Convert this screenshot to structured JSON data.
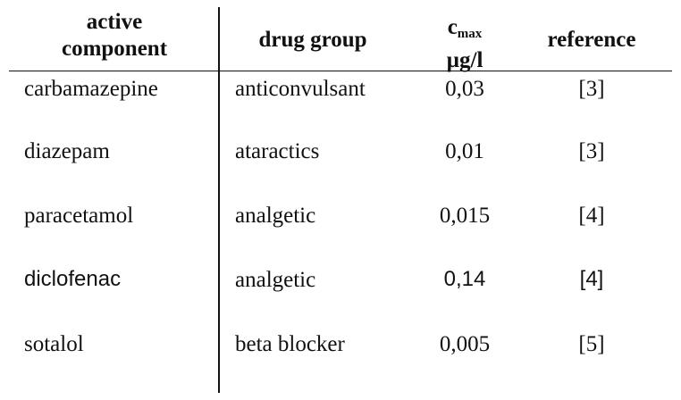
{
  "headers": {
    "active_component_line1": "active",
    "active_component_line2": "component",
    "drug_group": "drug group",
    "cmax_base": "c",
    "cmax_sub": "max",
    "cmax_unit": "µg/l",
    "reference": "reference"
  },
  "rows": [
    {
      "name": "carbamazepine",
      "group": "anticonvulsant",
      "cmax": "0,03",
      "reference": "[3]"
    },
    {
      "name": "diazepam",
      "group": "ataractics",
      "cmax": "0,01",
      "reference": "[3]"
    },
    {
      "name": "paracetamol",
      "group": "analgetic",
      "cmax": "0,015",
      "reference": "[4]"
    },
    {
      "name": "diclofenac",
      "group": "analgetic",
      "cmax": "0,14",
      "reference": "[4]"
    },
    {
      "name": "sotalol",
      "group": "beta blocker",
      "cmax": "0,005",
      "reference": "[5]"
    }
  ]
}
